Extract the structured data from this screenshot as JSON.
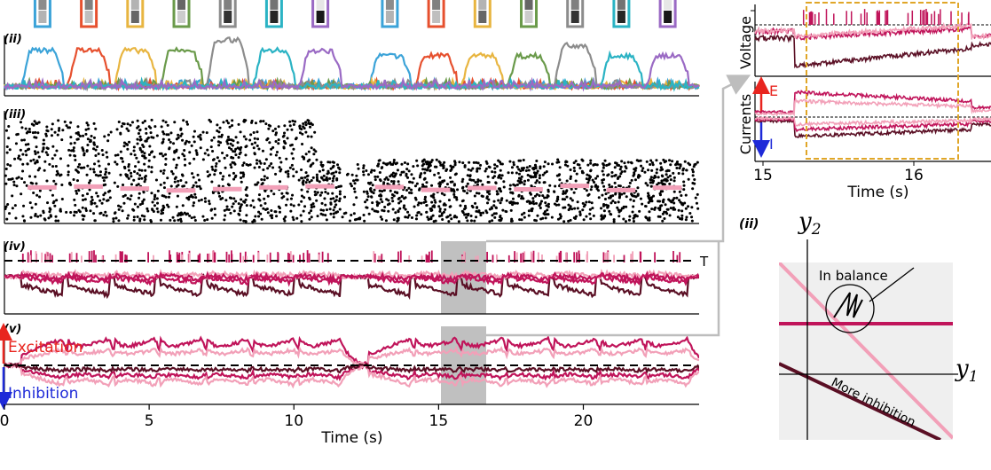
{
  "colors": {
    "stim": [
      "#3ba3d8",
      "#e6502e",
      "#e8b540",
      "#6a9a4a",
      "#8c8c8c",
      "#2bb3c4",
      "#9a6ac4"
    ],
    "palePink": "#f2a0b8",
    "magenta": "#c0145a",
    "darkRed": "#5a0f24",
    "excitation": "#e8251f",
    "inhibition": "#1e2ad8",
    "highlight": "#e0a628",
    "shade": "#c0c0c0"
  },
  "panels": {
    "ii": "(ii)",
    "iii": "(iii)",
    "iv": "(iv)",
    "v": "(v)",
    "right_ii": "(ii)"
  },
  "left": {
    "threshold_label": "T",
    "excitation_label": "Excitation",
    "inhibition_label": "Inhibition",
    "xlabel": "Time (s)",
    "xticks": [
      "0",
      "5",
      "10",
      "15",
      "20"
    ]
  },
  "inset": {
    "ylabel_voltage": "Voltage",
    "ylabel_currents": "Currents",
    "e_label": "E",
    "i_label": "I",
    "xticks": [
      "15",
      "16"
    ],
    "xlabel": "Time (s)"
  },
  "phase": {
    "y2": "y",
    "y2_sub": "2",
    "y1": "y",
    "y1_sub": "1",
    "in_balance": "In balance",
    "more_inhibition": "More inhibition"
  },
  "chart_data": {
    "type": "line",
    "xlabel": "Time (s)",
    "xticks": [
      0,
      5,
      10,
      15,
      20
    ],
    "xlim": [
      0,
      24
    ],
    "stimulus_intervals": [
      [
        0.6,
        2.0
      ],
      [
        2.2,
        3.6
      ],
      [
        3.8,
        5.2
      ],
      [
        5.4,
        6.8
      ],
      [
        7.0,
        8.4
      ],
      [
        8.6,
        10.0
      ],
      [
        10.2,
        11.6
      ],
      [
        12.6,
        14.0
      ],
      [
        14.2,
        15.6
      ],
      [
        15.8,
        17.2
      ],
      [
        17.4,
        18.8
      ],
      [
        19.0,
        20.4
      ],
      [
        20.6,
        22.0
      ],
      [
        22.2,
        23.6
      ]
    ],
    "highlight_window": [
      15.0,
      16.6
    ],
    "threshold_label": "T",
    "inset": {
      "xlim": [
        15.0,
        16.8
      ],
      "xticks": [
        15,
        16
      ],
      "highlight": [
        15.3,
        16.65
      ]
    }
  }
}
